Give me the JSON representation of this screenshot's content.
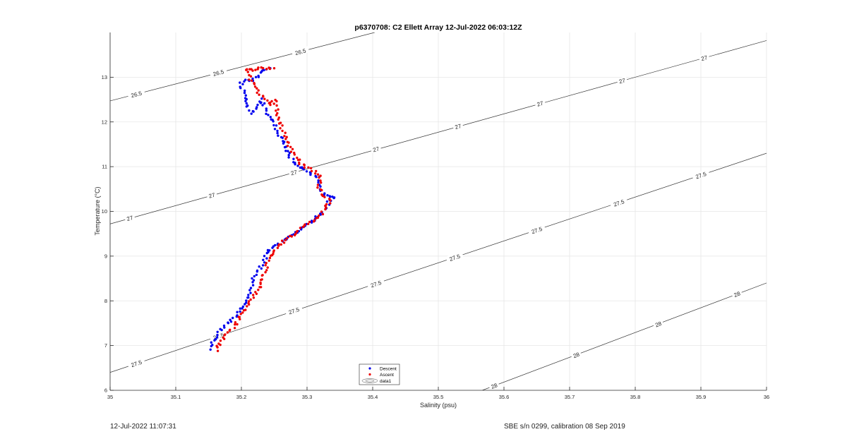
{
  "chart_data": {
    "type": "scatter",
    "title": "p6370708: C2 Ellett Array 12-Jul-2022 06:03:12Z",
    "xlabel": "Salinity (psu)",
    "ylabel": "Temperature (°C)",
    "xlim": [
      35,
      36
    ],
    "ylim": [
      6,
      14
    ],
    "xticks": [
      35,
      35.1,
      35.2,
      35.3,
      35.4,
      35.5,
      35.6,
      35.7,
      35.8,
      35.9,
      36
    ],
    "xtick_labels": [
      "35",
      "35.1",
      "35.2",
      "35.3",
      "35.4",
      "35.5",
      "35.6",
      "35.7",
      "35.8",
      "35.9",
      "36"
    ],
    "yticks": [
      6,
      7,
      8,
      9,
      10,
      11,
      12,
      13
    ],
    "ytick_labels": [
      "6",
      "7",
      "8",
      "9",
      "10",
      "11",
      "12",
      "13"
    ],
    "grid": true,
    "legend": {
      "placement": "bottom-center"
    },
    "series": [
      {
        "name": "Descent",
        "color": "#0000ee",
        "marker": "dot",
        "path": [
          [
            35.152,
            6.92
          ],
          [
            35.156,
            7.05
          ],
          [
            35.163,
            7.25
          ],
          [
            35.175,
            7.45
          ],
          [
            35.19,
            7.65
          ],
          [
            35.2,
            7.85
          ],
          [
            35.21,
            8.05
          ],
          [
            35.215,
            8.3
          ],
          [
            35.22,
            8.55
          ],
          [
            35.232,
            8.8
          ],
          [
            35.238,
            9.05
          ],
          [
            35.25,
            9.2
          ],
          [
            35.27,
            9.4
          ],
          [
            35.29,
            9.6
          ],
          [
            35.31,
            9.8
          ],
          [
            35.325,
            10.0
          ],
          [
            35.333,
            10.2
          ],
          [
            35.343,
            10.3
          ],
          [
            35.33,
            10.35
          ],
          [
            35.32,
            10.5
          ],
          [
            35.316,
            10.75
          ],
          [
            35.3,
            10.9
          ],
          [
            35.285,
            11.0
          ],
          [
            35.275,
            11.2
          ],
          [
            35.265,
            11.5
          ],
          [
            35.255,
            11.8
          ],
          [
            35.25,
            12.0
          ],
          [
            35.24,
            12.15
          ],
          [
            35.235,
            12.35
          ],
          [
            35.23,
            12.5
          ],
          [
            35.218,
            12.2
          ],
          [
            35.205,
            12.4
          ],
          [
            35.205,
            12.6
          ],
          [
            35.198,
            12.9
          ],
          [
            35.22,
            12.95
          ],
          [
            35.228,
            13.05
          ],
          [
            35.23,
            13.15
          ],
          [
            35.244,
            13.2
          ]
        ]
      },
      {
        "name": "Ascent",
        "color": "#ee0000",
        "marker": "dot",
        "path": [
          [
            35.162,
            6.9
          ],
          [
            35.17,
            7.1
          ],
          [
            35.18,
            7.3
          ],
          [
            35.19,
            7.45
          ],
          [
            35.2,
            7.7
          ],
          [
            35.21,
            7.9
          ],
          [
            35.222,
            8.2
          ],
          [
            35.232,
            8.45
          ],
          [
            35.236,
            8.7
          ],
          [
            35.242,
            8.95
          ],
          [
            35.25,
            9.15
          ],
          [
            35.265,
            9.35
          ],
          [
            35.285,
            9.55
          ],
          [
            35.305,
            9.75
          ],
          [
            35.322,
            9.95
          ],
          [
            35.332,
            10.15
          ],
          [
            35.335,
            10.25
          ],
          [
            35.322,
            10.35
          ],
          [
            35.318,
            10.55
          ],
          [
            35.32,
            10.8
          ],
          [
            35.305,
            10.95
          ],
          [
            35.29,
            11.05
          ],
          [
            35.278,
            11.3
          ],
          [
            35.268,
            11.6
          ],
          [
            35.26,
            11.9
          ],
          [
            35.255,
            12.2
          ],
          [
            35.252,
            12.4
          ],
          [
            35.25,
            12.5
          ],
          [
            35.242,
            12.4
          ],
          [
            35.235,
            12.5
          ],
          [
            35.22,
            12.8
          ],
          [
            35.21,
            13.05
          ],
          [
            35.205,
            13.15
          ],
          [
            35.228,
            13.2
          ],
          [
            35.25,
            13.2
          ]
        ]
      }
    ],
    "isopycnals": [
      {
        "sigma": 26.5,
        "label": "26.5",
        "line": [
          [
            35,
            12.47
          ],
          [
            35.403,
            14.0
          ]
        ],
        "label_at": [
          [
            35.04,
            12.62
          ],
          [
            35.165,
            13.1
          ],
          [
            35.29,
            13.57
          ]
        ]
      },
      {
        "sigma": 27,
        "label": "27",
        "line": [
          [
            35,
            9.72
          ],
          [
            36,
            13.82
          ]
        ],
        "label_at": [
          [
            35.03,
            9.85
          ],
          [
            35.155,
            10.36
          ],
          [
            35.28,
            10.87
          ],
          [
            35.405,
            11.39
          ],
          [
            35.53,
            11.9
          ],
          [
            35.655,
            12.41
          ],
          [
            35.78,
            12.92
          ],
          [
            35.905,
            13.43
          ]
        ]
      },
      {
        "sigma": 27.5,
        "label": "27.5",
        "line": [
          [
            35,
            6.4
          ],
          [
            36,
            11.3
          ]
        ],
        "label_at": [
          [
            35.04,
            6.6
          ],
          [
            35.165,
            7.21
          ],
          [
            35.28,
            7.78
          ],
          [
            35.405,
            8.38
          ],
          [
            35.525,
            8.97
          ],
          [
            35.65,
            9.58
          ],
          [
            35.775,
            10.19
          ],
          [
            35.9,
            10.81
          ]
        ]
      },
      {
        "sigma": 28,
        "label": "28",
        "line": [
          [
            35.567,
            6.0
          ],
          [
            36,
            8.4
          ]
        ],
        "label_at": [
          [
            35.585,
            6.1
          ],
          [
            35.71,
            6.79
          ],
          [
            35.835,
            7.48
          ],
          [
            35.955,
            8.15
          ]
        ]
      }
    ],
    "legend_entries": [
      "Descent",
      "Ascent",
      "data1"
    ]
  },
  "footer": {
    "left": "12-Jul-2022 11:07:31",
    "right": "SBE s/n 0299, calibration 08 Sep 2019"
  }
}
